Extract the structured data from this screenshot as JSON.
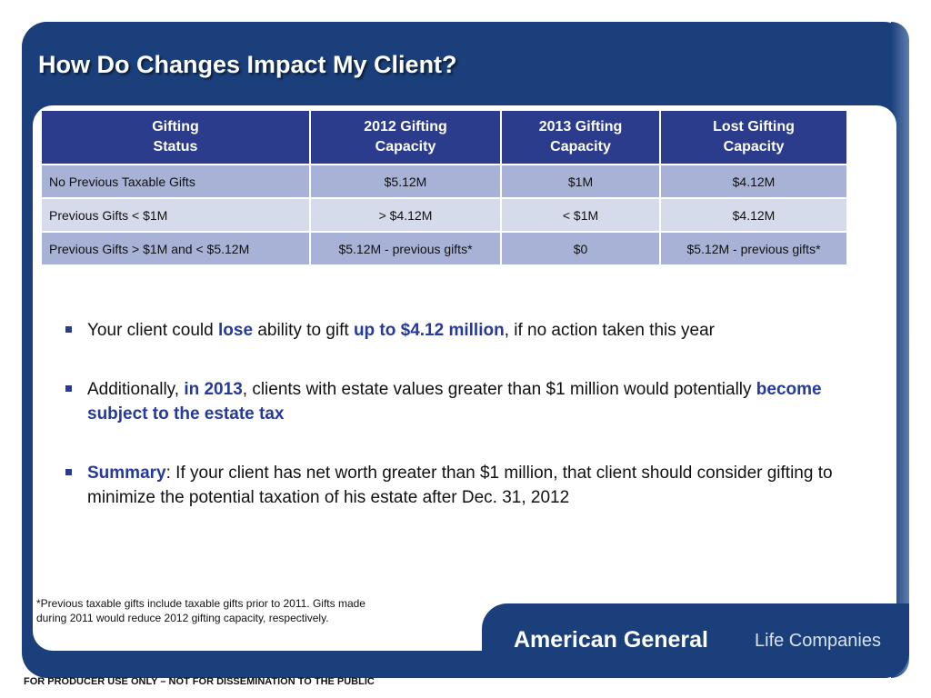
{
  "slide": {
    "title": "How Do Changes Impact My Client?"
  },
  "table": {
    "headers": [
      [
        "Gifting",
        "Status"
      ],
      [
        "2012 Gifting",
        "Capacity"
      ],
      [
        "2013 Gifting",
        "Capacity"
      ],
      [
        "Lost Gifting",
        "Capacity"
      ]
    ],
    "rows": [
      [
        "No Previous Taxable Gifts",
        "$5.12M",
        "$1M",
        "$4.12M"
      ],
      [
        "Previous Gifts < $1M",
        "> $4.12M",
        "< $1M",
        "$4.12M"
      ],
      [
        "Previous Gifts > $1M and < $5.12M",
        "$5.12M - previous gifts*",
        "$0",
        "$5.12M - previous gifts*"
      ]
    ]
  },
  "bullets": [
    {
      "pre": "Your client could ",
      "hl1": "lose",
      "mid": " ability to gift ",
      "hl2": "up to $4.12 million",
      "post": ", if no action taken this year"
    },
    {
      "pre": "Additionally, ",
      "hl1": "in 2013",
      "mid": ", clients with estate values greater than $1 million would potentially ",
      "hl2": "become subject to the estate tax",
      "post": ""
    },
    {
      "pre": "",
      "hl1": "Summary",
      "mid": ": If your client has net worth greater than $1 million, that client should consider gifting to minimize the potential taxation of his estate after Dec. 31, 2012",
      "hl2": "",
      "post": ""
    }
  ],
  "footnote": "*Previous taxable gifts include taxable gifts prior to 2011.  Gifts made\n  during 2011 would reduce 2012 gifting capacity, respectively.",
  "brand": {
    "main": "American General",
    "sub": "Life Companies"
  },
  "disclaimer": "FOR PRODUCER USE ONLY – NOT FOR DISSEMINATION TO THE PUBLIC",
  "colors": {
    "frame": "#1a3f7a",
    "header_row": "#2b3c8d",
    "row_dark": "#a7b2d6",
    "row_light": "#d6dbeb",
    "highlight_text": "#253a9a"
  }
}
